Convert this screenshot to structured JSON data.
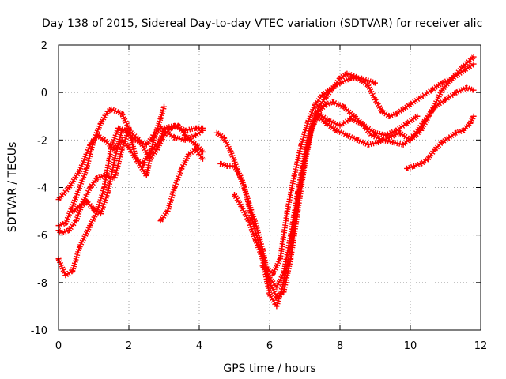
{
  "chart_data": {
    "type": "line",
    "title": "Day 138 of 2015, Sidereal Day-to-day VTEC variation (SDTVAR) for receiver alic",
    "xlabel": "GPS time / hours",
    "ylabel": "SDTVAR / TECUs",
    "xlim": [
      0,
      12
    ],
    "ylim": [
      -10,
      2
    ],
    "x_ticks": [
      0,
      2,
      4,
      6,
      8,
      10,
      12
    ],
    "y_ticks": [
      -10,
      -8,
      -6,
      -4,
      -2,
      0,
      2
    ],
    "x_tick_labels": [
      "0",
      "2",
      "4",
      "6",
      "8",
      "10",
      "12"
    ],
    "y_tick_labels": [
      "-10",
      "-8",
      "-6",
      "-4",
      "-2",
      "0",
      "2"
    ],
    "grid": true,
    "legend": "none",
    "marker": "plus",
    "series_color": "#ff0000",
    "series": [
      {
        "x": [
          0.0,
          0.2,
          0.5,
          0.8,
          1.0,
          1.2,
          1.4,
          1.5,
          1.8,
          2.0,
          2.2,
          2.5,
          2.7,
          2.9,
          3.0
        ],
        "y": [
          -5.6,
          -5.5,
          -4.4,
          -3.2,
          -2.0,
          -1.3,
          -0.8,
          -0.7,
          -0.9,
          -1.5,
          -2.8,
          -3.5,
          -2.0,
          -1.1,
          -0.6
        ]
      },
      {
        "x": [
          0.0,
          0.3,
          0.6,
          0.9,
          1.1,
          1.3,
          1.6,
          1.8,
          2.0,
          2.2,
          2.4,
          2.6,
          2.9,
          3.0,
          3.3,
          3.6,
          3.9,
          4.1
        ],
        "y": [
          -4.5,
          -4.0,
          -3.3,
          -2.2,
          -1.8,
          -2.0,
          -2.4,
          -2.0,
          -2.3,
          -2.8,
          -3.0,
          -2.5,
          -2.0,
          -1.5,
          -1.4,
          -1.6,
          -1.5,
          -1.5
        ]
      },
      {
        "x": [
          0.0,
          0.2,
          0.4,
          0.6,
          0.9,
          1.1,
          1.3,
          1.5,
          1.7,
          1.9,
          2.1,
          2.3,
          2.5,
          2.7,
          2.9,
          3.1,
          3.3,
          3.6,
          3.9,
          4.1
        ],
        "y": [
          -7.0,
          -7.7,
          -7.5,
          -6.5,
          -5.6,
          -5.0,
          -4.0,
          -2.3,
          -1.5,
          -1.6,
          -1.9,
          -2.1,
          -2.2,
          -1.8,
          -1.5,
          -1.7,
          -1.9,
          -2.0,
          -1.8,
          -1.6
        ]
      },
      {
        "x": [
          0.0,
          0.1,
          0.3,
          0.5,
          0.7,
          0.9,
          1.1,
          1.3,
          1.6,
          1.8,
          2.0,
          2.3,
          2.6,
          2.8,
          3.0,
          3.2,
          3.4,
          3.6,
          3.9,
          4.1
        ],
        "y": [
          -5.8,
          -5.9,
          -5.8,
          -5.4,
          -4.6,
          -4.0,
          -3.6,
          -3.5,
          -3.6,
          -2.4,
          -1.6,
          -2.0,
          -2.8,
          -2.4,
          -1.8,
          -1.5,
          -1.4,
          -1.8,
          -2.2,
          -2.5
        ]
      },
      {
        "x": [
          0.4,
          0.6,
          0.8,
          1.0,
          1.2,
          1.4,
          1.6,
          1.8
        ],
        "y": [
          -5.0,
          -4.8,
          -4.6,
          -4.9,
          -5.1,
          -4.2,
          -2.8,
          -1.6
        ]
      },
      {
        "x": [
          2.9,
          3.1,
          3.3,
          3.5,
          3.7,
          3.9,
          4.1
        ],
        "y": [
          -5.4,
          -5.0,
          -4.0,
          -3.2,
          -2.6,
          -2.4,
          -2.8
        ]
      },
      {
        "x": [
          4.5,
          4.7,
          4.9,
          5.1,
          5.3,
          5.5,
          5.7,
          5.9,
          6.1,
          6.3,
          6.5,
          6.7,
          6.9,
          7.1,
          7.3,
          7.5,
          7.7,
          8.0,
          8.3,
          8.6,
          8.8,
          9.0
        ],
        "y": [
          -1.7,
          -1.9,
          -2.5,
          -3.3,
          -4.1,
          -5.3,
          -6.4,
          -7.4,
          -7.6,
          -7.0,
          -5.0,
          -3.5,
          -2.2,
          -1.2,
          -0.5,
          -0.1,
          0.1,
          0.4,
          0.6,
          0.6,
          0.5,
          0.4
        ]
      },
      {
        "x": [
          4.6,
          4.8,
          5.0,
          5.2,
          5.4,
          5.6,
          5.8,
          6.0,
          6.2,
          6.4,
          6.6,
          6.8,
          7.0,
          7.2,
          7.4,
          7.6,
          7.8,
          8.1,
          8.4,
          8.7,
          9.0,
          9.3,
          9.6,
          9.9,
          10.2
        ],
        "y": [
          -3.0,
          -3.1,
          -3.1,
          -3.6,
          -4.6,
          -5.5,
          -6.6,
          -8.0,
          -8.6,
          -8.4,
          -7.0,
          -5.0,
          -3.0,
          -1.5,
          -0.8,
          -0.5,
          -0.4,
          -0.6,
          -1.0,
          -1.4,
          -1.7,
          -1.8,
          -1.6,
          -1.3,
          -1.0
        ]
      },
      {
        "x": [
          5.0,
          5.2,
          5.4,
          5.6,
          5.8,
          6.0,
          6.2,
          6.4,
          6.6,
          6.8,
          7.0,
          7.2,
          7.4,
          7.6,
          7.8,
          8.0,
          8.2,
          8.4,
          8.6,
          8.8,
          9.0,
          9.2,
          9.4,
          9.6,
          9.8,
          10.0,
          10.3,
          10.6,
          10.9,
          11.2,
          11.5,
          11.8
        ],
        "y": [
          -4.3,
          -4.8,
          -5.4,
          -6.2,
          -7.0,
          -8.5,
          -9.0,
          -8.0,
          -6.5,
          -4.5,
          -2.8,
          -1.4,
          -0.6,
          -0.2,
          0.2,
          0.6,
          0.8,
          0.7,
          0.5,
          0.3,
          -0.3,
          -0.8,
          -1.0,
          -0.9,
          -0.7,
          -0.5,
          -0.2,
          0.1,
          0.4,
          0.6,
          0.9,
          1.2
        ]
      },
      {
        "x": [
          5.8,
          6.0,
          6.2,
          6.4,
          6.6,
          6.8,
          7.0,
          7.2,
          7.4,
          7.7,
          8.0,
          8.3,
          8.6,
          8.9,
          9.2,
          9.5,
          9.8,
          10.1,
          10.4,
          10.7,
          11.0,
          11.3,
          11.6,
          11.8
        ],
        "y": [
          -7.3,
          -7.8,
          -8.2,
          -7.6,
          -6.0,
          -4.2,
          -2.6,
          -1.5,
          -0.9,
          -1.2,
          -1.4,
          -1.1,
          -1.3,
          -1.8,
          -2.0,
          -2.1,
          -2.2,
          -1.8,
          -1.2,
          -0.6,
          -0.3,
          0.0,
          0.2,
          0.1
        ]
      },
      {
        "x": [
          7.3,
          7.6,
          7.9,
          8.2,
          8.5,
          8.8,
          9.1,
          9.4,
          9.7,
          10.0,
          10.3,
          10.6,
          10.9,
          11.2,
          11.5,
          11.8
        ],
        "y": [
          -0.9,
          -1.3,
          -1.6,
          -1.8,
          -2.0,
          -2.2,
          -2.1,
          -1.9,
          -1.7,
          -2.0,
          -1.6,
          -0.8,
          0.1,
          0.6,
          1.1,
          1.5
        ]
      },
      {
        "x": [
          9.9,
          10.1,
          10.3,
          10.5,
          10.7,
          10.9,
          11.1,
          11.3,
          11.5,
          11.7,
          11.8
        ],
        "y": [
          -3.2,
          -3.1,
          -3.0,
          -2.8,
          -2.4,
          -2.1,
          -1.9,
          -1.7,
          -1.6,
          -1.3,
          -1.0
        ]
      }
    ]
  }
}
